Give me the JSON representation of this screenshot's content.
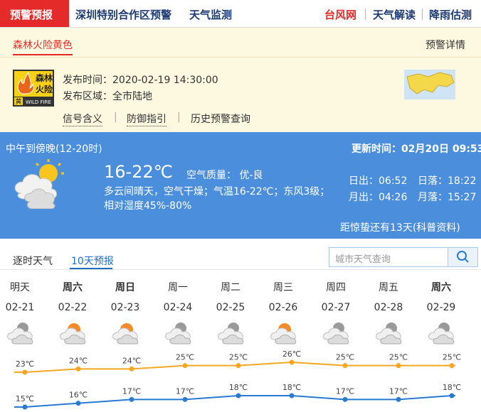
{
  "nav": {
    "active": "预警预报",
    "tabs": [
      "深圳特别合作区预警",
      "天气监测"
    ],
    "right_links": [
      "台风网",
      "天气解读",
      "降雨估测"
    ]
  },
  "warning": {
    "tab": "森林火险黄色",
    "detail": "预警详情",
    "icon": {
      "line1": "森林",
      "line2": "火险",
      "level": "黄",
      "english": "WILD FIRE"
    },
    "time_label": "发布时间：",
    "time": "2020-02-19 14:30:00",
    "area_label": "发布区域：",
    "area": "全市陆地",
    "links": [
      "信号含义",
      "防御指引",
      "历史预警查询"
    ]
  },
  "now": {
    "period": "中午到傍晚(12-20时)",
    "update_label": "更新时间：",
    "update_time": "02月20日 09:53",
    "temp": "16-22℃",
    "aqi_label": "空气质量：",
    "aqi": "优-良",
    "description": "多云间晴天，空气干燥；气温16-22℃；东风3级；相对湿度45%-80%",
    "sun": [
      {
        "label": "日出：",
        "time": "06:52"
      },
      {
        "label": "日落：",
        "time": "18:22"
      }
    ],
    "moon": [
      {
        "label": "月出：",
        "time": "04:26"
      },
      {
        "label": "月落：",
        "time": "15:27"
      }
    ],
    "solar_term": "距惊蛰还有13天(科普资料)"
  },
  "forecast": {
    "tabs": [
      "逐时天气",
      "10天预报"
    ],
    "search_placeholder": "城市天气查询",
    "weekdays": [
      "明天",
      "周六",
      "周日",
      "周一",
      "周二",
      "周三",
      "周四",
      "周五",
      "周六"
    ]
  },
  "chart_data": {
    "type": "line",
    "categories": [
      "02-21",
      "02-22",
      "02-23",
      "02-24",
      "02-25",
      "02-26",
      "02-27",
      "02-28",
      "02-29"
    ],
    "series": [
      {
        "color": "#f5a623",
        "values": [
          23,
          24,
          24,
          25,
          25,
          26,
          25,
          25,
          25
        ],
        "value_labels": [
          "23℃",
          "24℃",
          "24℃",
          "25℃",
          "25℃",
          "26℃",
          "25℃",
          "25℃",
          "25℃"
        ]
      },
      {
        "color": "#2a7ad2",
        "values": [
          15,
          16,
          17,
          17,
          18,
          18,
          17,
          17,
          18
        ],
        "value_labels": [
          "15℃",
          "16℃",
          "17℃",
          "17℃",
          "18℃",
          "18℃",
          "17℃",
          "17℃",
          "18℃"
        ]
      }
    ]
  }
}
